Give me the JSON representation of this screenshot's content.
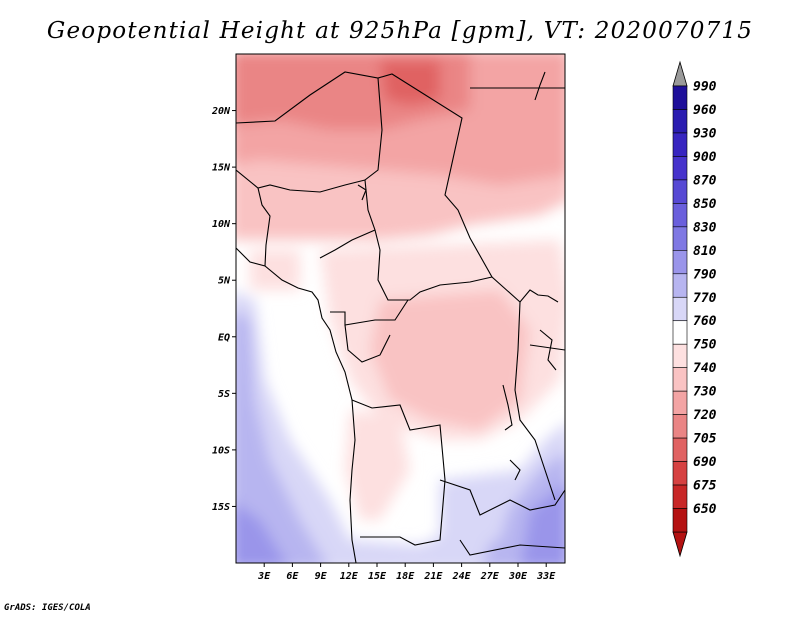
{
  "title": "Geopotential Height at 925hPa [gpm], VT: 2020070715",
  "credit": "GrADS: IGES/COLA",
  "map": {
    "lat_labels": [
      "20N",
      "15N",
      "10N",
      "5N",
      "EQ",
      "5S",
      "10S",
      "15S"
    ],
    "lat_values": [
      20,
      15,
      10,
      5,
      0,
      -5,
      -10,
      -15
    ],
    "lon_labels": [
      "3E",
      "6E",
      "9E",
      "12E",
      "15E",
      "18E",
      "21E",
      "24E",
      "27E",
      "30E",
      "33E"
    ],
    "lon_values": [
      3,
      6,
      9,
      12,
      15,
      18,
      21,
      24,
      27,
      30,
      33
    ],
    "lat_range": [
      -20,
      25
    ],
    "lon_range": [
      0,
      35
    ]
  },
  "colorbar": {
    "labels": [
      "990",
      "960",
      "930",
      "900",
      "870",
      "850",
      "830",
      "810",
      "790",
      "770",
      "760",
      "750",
      "740",
      "730",
      "720",
      "705",
      "690",
      "675",
      "650"
    ],
    "colors": [
      "#1e0f9a",
      "#2a1cb0",
      "#3725c0",
      "#4633cc",
      "#5749d4",
      "#6a5fdc",
      "#7f78e3",
      "#9a95ea",
      "#b7b5f0",
      "#d8d7f7",
      "#ffffff",
      "#fde0e0",
      "#f9c3c3",
      "#f3a4a4",
      "#ea8585",
      "#e06262",
      "#d64242",
      "#c82727",
      "#b41212"
    ],
    "over_color": "#9a9a9a",
    "under_color": "#b41212"
  }
}
